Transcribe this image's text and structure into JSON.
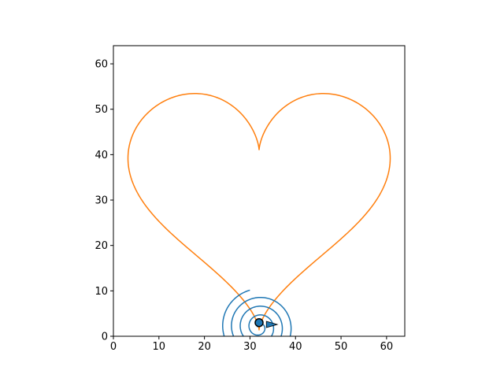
{
  "chart_data": {
    "type": "line",
    "title": "",
    "xlabel": "",
    "ylabel": "",
    "xlim": [
      0,
      64
    ],
    "ylim": [
      0,
      64
    ],
    "grid": false,
    "legend": "none",
    "xticks": [
      0,
      10,
      20,
      30,
      40,
      50,
      60
    ],
    "yticks": [
      0,
      10,
      20,
      30,
      40,
      50,
      60
    ],
    "series": [
      {
        "kind": "parametric-heart",
        "color": "#ff7f0e",
        "center_x": 32,
        "offset_y": 32,
        "scale": 1.8,
        "samples": 400
      },
      {
        "kind": "spiral",
        "color": "#1f77b4",
        "start": [
          30,
          10.1
        ],
        "center": [
          32,
          2
        ],
        "radius_start": 8.4,
        "radius_end": 0.3,
        "turns": 4.2,
        "samples": 500
      }
    ],
    "markers": [
      {
        "kind": "circle",
        "x": 32,
        "y": 3,
        "color": "#1f77b4",
        "edge": "#000000"
      },
      {
        "kind": "arrow",
        "x1": 33.6,
        "y1": 2.6,
        "x2": 36,
        "y2": 2.6,
        "color": "#1f77b4",
        "edge": "#000000"
      }
    ]
  }
}
